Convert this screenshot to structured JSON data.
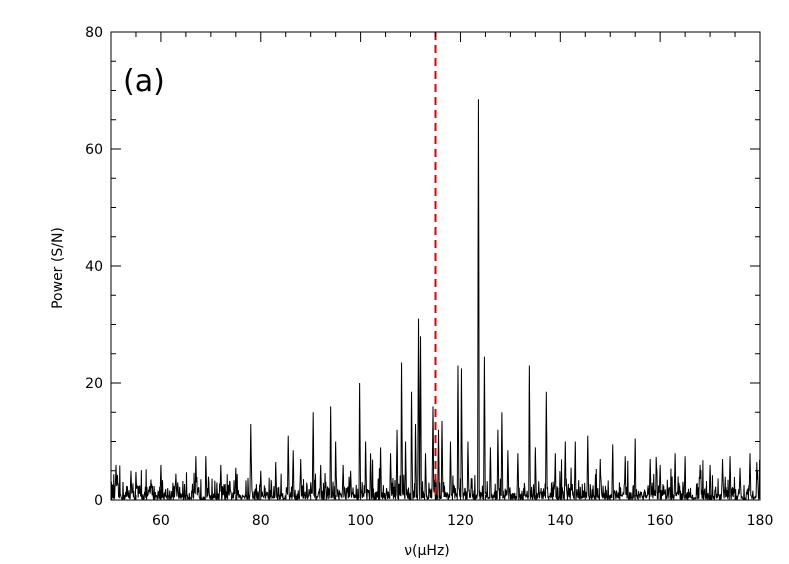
{
  "chart_data": {
    "type": "line",
    "title": "",
    "panel_label": "(a)",
    "xlabel": "ν(μHz)",
    "ylabel": "Power (S/N)",
    "xlim": [
      50,
      180
    ],
    "ylim": [
      0,
      80
    ],
    "xticks": [
      60,
      80,
      100,
      120,
      140,
      160,
      180
    ],
    "yticks": [
      0,
      20,
      40,
      60,
      80
    ],
    "grid": false,
    "marker_line": {
      "x": 115,
      "color": "#e00000",
      "style": "dashed"
    },
    "series": [
      {
        "color": "#000000",
        "noise_level": 1.2,
        "peaks": [
          {
            "x": 51,
            "y": 6
          },
          {
            "x": 54,
            "y": 5
          },
          {
            "x": 55,
            "y": 4.8
          },
          {
            "x": 58,
            "y": 3.5
          },
          {
            "x": 60,
            "y": 6
          },
          {
            "x": 63,
            "y": 4.5
          },
          {
            "x": 67,
            "y": 7.5
          },
          {
            "x": 69,
            "y": 7.5
          },
          {
            "x": 72,
            "y": 6
          },
          {
            "x": 75,
            "y": 5.5
          },
          {
            "x": 78,
            "y": 13
          },
          {
            "x": 80,
            "y": 5
          },
          {
            "x": 83,
            "y": 6.5
          },
          {
            "x": 85.5,
            "y": 11
          },
          {
            "x": 86.5,
            "y": 8.5
          },
          {
            "x": 88,
            "y": 7
          },
          {
            "x": 90.5,
            "y": 15
          },
          {
            "x": 92,
            "y": 6
          },
          {
            "x": 94,
            "y": 16
          },
          {
            "x": 95,
            "y": 10
          },
          {
            "x": 96.5,
            "y": 6
          },
          {
            "x": 98,
            "y": 5
          },
          {
            "x": 99.8,
            "y": 20
          },
          {
            "x": 101,
            "y": 10
          },
          {
            "x": 102,
            "y": 8
          },
          {
            "x": 104,
            "y": 9
          },
          {
            "x": 106,
            "y": 8
          },
          {
            "x": 107.3,
            "y": 12
          },
          {
            "x": 108.2,
            "y": 23.5
          },
          {
            "x": 109,
            "y": 10
          },
          {
            "x": 110.2,
            "y": 18.5
          },
          {
            "x": 111,
            "y": 13
          },
          {
            "x": 111.6,
            "y": 31
          },
          {
            "x": 112,
            "y": 28
          },
          {
            "x": 113,
            "y": 8
          },
          {
            "x": 114.5,
            "y": 16
          },
          {
            "x": 115.6,
            "y": 12
          },
          {
            "x": 116.3,
            "y": 13.5
          },
          {
            "x": 118,
            "y": 10
          },
          {
            "x": 119.5,
            "y": 23
          },
          {
            "x": 120.2,
            "y": 22.5
          },
          {
            "x": 121.5,
            "y": 10
          },
          {
            "x": 123.6,
            "y": 68.5
          },
          {
            "x": 124.8,
            "y": 24.5
          },
          {
            "x": 126,
            "y": 9
          },
          {
            "x": 127.5,
            "y": 12
          },
          {
            "x": 128.3,
            "y": 15
          },
          {
            "x": 129.5,
            "y": 8.5
          },
          {
            "x": 131.5,
            "y": 8
          },
          {
            "x": 133.8,
            "y": 23
          },
          {
            "x": 135,
            "y": 9
          },
          {
            "x": 137.2,
            "y": 18.5
          },
          {
            "x": 139,
            "y": 8
          },
          {
            "x": 141,
            "y": 10
          },
          {
            "x": 143,
            "y": 10
          },
          {
            "x": 145.5,
            "y": 11
          },
          {
            "x": 148,
            "y": 7
          },
          {
            "x": 150.5,
            "y": 9.5
          },
          {
            "x": 153,
            "y": 7.5
          },
          {
            "x": 155,
            "y": 10.5
          },
          {
            "x": 158,
            "y": 7
          },
          {
            "x": 160,
            "y": 6
          },
          {
            "x": 163,
            "y": 8
          },
          {
            "x": 165,
            "y": 7.5
          },
          {
            "x": 168,
            "y": 6
          },
          {
            "x": 170,
            "y": 6
          },
          {
            "x": 172.5,
            "y": 7
          },
          {
            "x": 174,
            "y": 7.5
          },
          {
            "x": 176,
            "y": 5.5
          },
          {
            "x": 178,
            "y": 8
          },
          {
            "x": 179.5,
            "y": 5
          }
        ]
      }
    ]
  }
}
